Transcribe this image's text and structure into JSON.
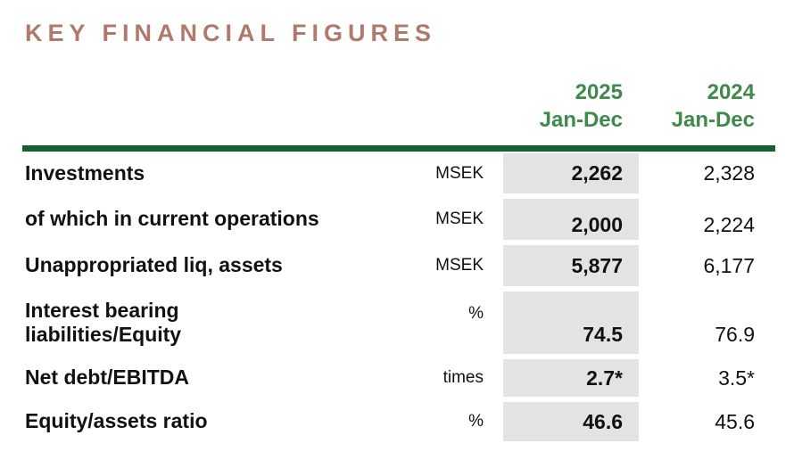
{
  "page": {
    "title": "KEY FINANCIAL FIGURES"
  },
  "colors": {
    "title_rose": "#b1786c",
    "header_green": "#3f8a4b",
    "rule_dark_green": "#155f31",
    "highlight_gray": "#e3e3e3",
    "text": "#111111",
    "background": "#ffffff"
  },
  "table": {
    "columns": [
      {
        "year": "2025",
        "period": "Jan-Dec"
      },
      {
        "year": "2024",
        "period": "Jan-Dec"
      }
    ],
    "rows": [
      {
        "label": "Investments",
        "unit": "MSEK",
        "v2025": "2,262",
        "v2024": "2,328"
      },
      {
        "label": "of which in current operations",
        "unit": "MSEK",
        "v2025": "2,000",
        "v2024": "2,224"
      },
      {
        "label": "Unappropriated liq, assets",
        "unit": "MSEK",
        "v2025": "5,877",
        "v2024": "6,177"
      },
      {
        "label": "Interest bearing liabilities/Equity",
        "unit": "%",
        "v2025": "74.5",
        "v2024": "76.9"
      },
      {
        "label": "Net debt/EBITDA",
        "unit": "times",
        "v2025": "2.7*",
        "v2024": "3.5*"
      },
      {
        "label": "Equity/assets ratio",
        "unit": "%",
        "v2025": "46.6",
        "v2024": "45.6"
      }
    ]
  }
}
